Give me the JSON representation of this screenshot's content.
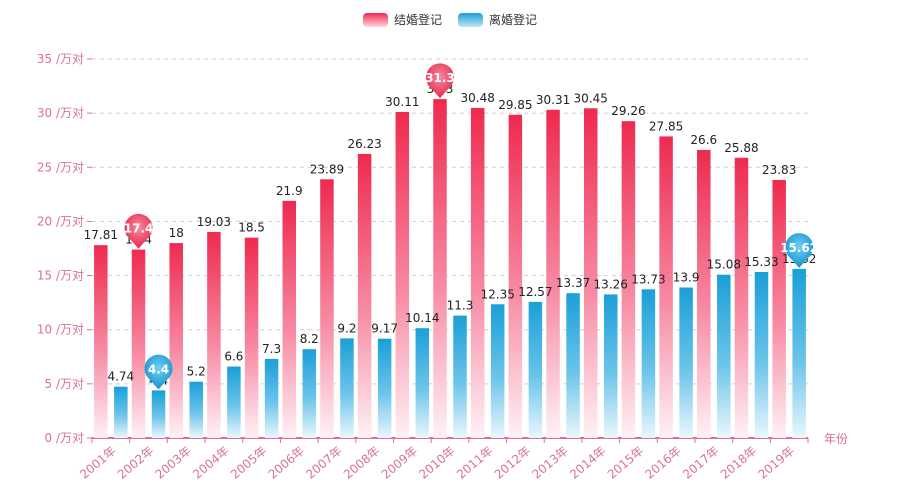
{
  "chart_data": {
    "type": "bar",
    "categories": [
      "2001年",
      "2002年",
      "2003年",
      "2004年",
      "2005年",
      "2006年",
      "2007年",
      "2008年",
      "2009年",
      "2010年",
      "2011年",
      "2012年",
      "2013年",
      "2014年",
      "2015年",
      "2016年",
      "2017年",
      "2018年",
      "2019年"
    ],
    "series": [
      {
        "name": "结婚登记",
        "values": [
          17.81,
          17.4,
          18,
          19.03,
          18.5,
          21.9,
          23.89,
          26.23,
          30.11,
          31.3,
          30.48,
          29.85,
          30.31,
          30.45,
          29.26,
          27.85,
          26.6,
          25.88,
          23.83
        ],
        "color": "#ee2a4f",
        "max_marker": {
          "category": "2010年",
          "value": 31.3
        },
        "min_marker": {
          "category": "2002年",
          "value": 17.4
        }
      },
      {
        "name": "离婚登记",
        "values": [
          4.74,
          4.4,
          5.2,
          6.6,
          7.3,
          8.2,
          9.2,
          9.17,
          10.14,
          11.3,
          12.35,
          12.57,
          13.37,
          13.26,
          13.73,
          13.9,
          15.08,
          15.33,
          15.62
        ],
        "color": "#1a9fd8",
        "max_marker": {
          "category": "2019年",
          "value": 15.62
        },
        "min_marker": {
          "category": "2002年",
          "value": 4.4
        }
      }
    ],
    "y_tick_labels": [
      "0 /万对",
      "5 /万对",
      "10 /万对",
      "15 /万对",
      "20 /万对",
      "25 /万对",
      "30 /万对",
      "35 /万对"
    ],
    "ylim": [
      0,
      35
    ],
    "xlabel": "年份",
    "ylabel": "",
    "axis_color": "#d8719a",
    "grid": "dashed horizontal",
    "legend_position": "top-center"
  }
}
